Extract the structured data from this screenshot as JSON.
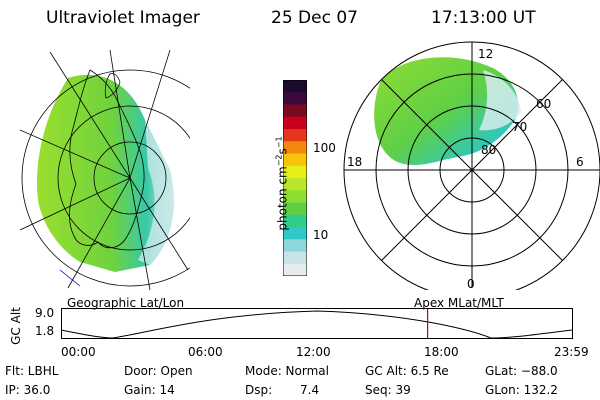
{
  "header": {
    "title": "Ultraviolet Imager",
    "date": "25 Dec 07",
    "time": "17:13:00 UT"
  },
  "geo_panel": {
    "caption": "Geographic Lat/Lon"
  },
  "polar_panel": {
    "caption": "Apex MLat/MLT",
    "lat_labels": [
      "60",
      "70",
      "80"
    ],
    "mlt_labels": {
      "top": "12",
      "left": "18",
      "right": "6",
      "bottom": "0"
    }
  },
  "colorbar": {
    "unit_main": "photon cm",
    "unit_exp1": "−2",
    "unit_mid": "s",
    "unit_exp2": "−1",
    "ticks": [
      "100",
      "10"
    ],
    "colors": [
      "#1a0a2e",
      "#3b0a3a",
      "#7a0a20",
      "#c8001e",
      "#e4371a",
      "#f5870f",
      "#f8c40a",
      "#e7f016",
      "#b9e62a",
      "#8fdc33",
      "#5fd046",
      "#30cc8a",
      "#30c8c8",
      "#8cd6dc",
      "#c8e4e8",
      "#e6ecee"
    ]
  },
  "altitude_panel": {
    "ylabel": "GC Alt",
    "y_ticks": [
      "9.0",
      "1.8"
    ],
    "x_ticks": [
      "00:00",
      "06:00",
      "12:00",
      "18:00",
      "23:59"
    ],
    "current_time_hours": 17.22,
    "marker_color": "#cc0000"
  },
  "status": {
    "filter": "Flt: LBHL",
    "ip": "IP: 36.0",
    "door": "Door: Open",
    "gain": "Gain: 14",
    "mode": "Mode: Normal",
    "dsp_label": "Dsp:",
    "dsp_value": "7.4",
    "gc_alt": "GC Alt: 6.5 Re",
    "seq": "Seq: 39",
    "glat": "GLat: −88.0",
    "glon": "GLon: 132.2"
  }
}
